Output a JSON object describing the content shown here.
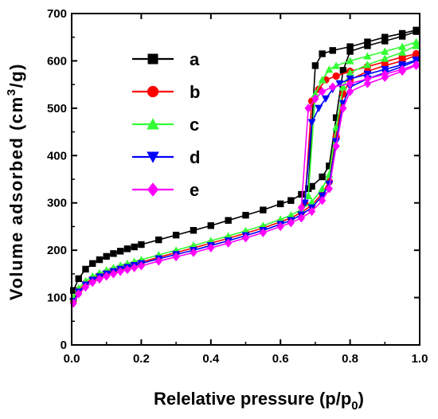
{
  "chart_data": {
    "type": "line",
    "xlabel": "Relelative pressure (p/p",
    "xlabel_sub": "0",
    "xlabel_close": ")",
    "ylabel": "Volume adsorbed (cm",
    "ylabel_sup": "3",
    "ylabel_close": "/g)",
    "xlim": [
      0.0,
      1.0
    ],
    "ylim": [
      0,
      700
    ],
    "xticks": [
      "0.0",
      "0.2",
      "0.4",
      "0.6",
      "0.8",
      "1.0"
    ],
    "yticks": [
      "0",
      "100",
      "200",
      "300",
      "400",
      "500",
      "600",
      "700"
    ],
    "legend_position": "upper-left",
    "series": [
      {
        "name": "a",
        "color": "#000000",
        "marker": "square",
        "adsorption": {
          "x": [
            0.005,
            0.02,
            0.04,
            0.06,
            0.08,
            0.1,
            0.12,
            0.14,
            0.16,
            0.18,
            0.2,
            0.25,
            0.3,
            0.35,
            0.4,
            0.45,
            0.5,
            0.55,
            0.6,
            0.63,
            0.66,
            0.69,
            0.72,
            0.74,
            0.76,
            0.78,
            0.8,
            0.85,
            0.9,
            0.95,
            0.99
          ],
          "y": [
            115,
            140,
            160,
            172,
            180,
            187,
            193,
            198,
            203,
            207,
            212,
            222,
            232,
            242,
            252,
            263,
            274,
            285,
            298,
            305,
            318,
            335,
            355,
            378,
            480,
            580,
            620,
            632,
            642,
            652,
            662
          ]
        },
        "desorption": {
          "x": [
            0.99,
            0.95,
            0.9,
            0.85,
            0.8,
            0.75,
            0.72,
            0.7,
            0.68
          ],
          "y": [
            665,
            658,
            650,
            640,
            630,
            622,
            615,
            590,
            330
          ]
        }
      },
      {
        "name": "b",
        "color": "#ff0000",
        "marker": "circle",
        "adsorption": {
          "x": [
            0.005,
            0.02,
            0.04,
            0.06,
            0.08,
            0.1,
            0.12,
            0.14,
            0.16,
            0.18,
            0.2,
            0.25,
            0.3,
            0.35,
            0.4,
            0.45,
            0.5,
            0.55,
            0.6,
            0.63,
            0.66,
            0.69,
            0.72,
            0.74,
            0.76,
            0.78,
            0.8,
            0.85,
            0.9,
            0.95,
            0.99
          ],
          "y": [
            95,
            115,
            130,
            140,
            147,
            153,
            158,
            163,
            167,
            171,
            175,
            185,
            195,
            205,
            215,
            225,
            236,
            247,
            260,
            268,
            280,
            295,
            320,
            345,
            440,
            530,
            560,
            578,
            590,
            600,
            612
          ]
        },
        "desorption": {
          "x": [
            0.99,
            0.95,
            0.9,
            0.85,
            0.8,
            0.76,
            0.73,
            0.71,
            0.69,
            0.67
          ],
          "y": [
            615,
            608,
            598,
            588,
            578,
            568,
            560,
            540,
            515,
            300
          ]
        }
      },
      {
        "name": "c",
        "color": "#33ff33",
        "marker": "triangle-up",
        "adsorption": {
          "x": [
            0.005,
            0.02,
            0.04,
            0.06,
            0.08,
            0.1,
            0.12,
            0.14,
            0.16,
            0.18,
            0.2,
            0.25,
            0.3,
            0.35,
            0.4,
            0.45,
            0.5,
            0.55,
            0.6,
            0.63,
            0.66,
            0.69,
            0.72,
            0.74,
            0.76,
            0.78,
            0.8,
            0.85,
            0.9,
            0.95,
            0.99
          ],
          "y": [
            100,
            120,
            135,
            145,
            152,
            158,
            163,
            168,
            172,
            176,
            180,
            190,
            200,
            210,
            220,
            230,
            241,
            252,
            265,
            274,
            286,
            302,
            330,
            360,
            460,
            545,
            575,
            592,
            605,
            618,
            632
          ]
        },
        "desorption": {
          "x": [
            0.99,
            0.95,
            0.9,
            0.85,
            0.8,
            0.76,
            0.74,
            0.72,
            0.7,
            0.68
          ],
          "y": [
            640,
            630,
            620,
            610,
            600,
            590,
            582,
            560,
            530,
            315
          ]
        }
      },
      {
        "name": "d",
        "color": "#0000ff",
        "marker": "triangle-down",
        "adsorption": {
          "x": [
            0.005,
            0.02,
            0.04,
            0.06,
            0.08,
            0.1,
            0.12,
            0.14,
            0.16,
            0.18,
            0.2,
            0.25,
            0.3,
            0.35,
            0.4,
            0.45,
            0.5,
            0.55,
            0.6,
            0.63,
            0.66,
            0.69,
            0.72,
            0.74,
            0.76,
            0.78,
            0.8,
            0.85,
            0.9,
            0.95,
            0.99
          ],
          "y": [
            92,
            112,
            127,
            137,
            144,
            150,
            155,
            160,
            164,
            168,
            172,
            182,
            191,
            200,
            210,
            220,
            231,
            242,
            255,
            263,
            275,
            290,
            315,
            340,
            430,
            510,
            545,
            562,
            575,
            588,
            600
          ]
        },
        "desorption": {
          "x": [
            0.99,
            0.95,
            0.9,
            0.85,
            0.8,
            0.77,
            0.75,
            0.73,
            0.71,
            0.69,
            0.67
          ],
          "y": [
            602,
            592,
            582,
            572,
            562,
            552,
            540,
            520,
            500,
            470,
            300
          ]
        }
      },
      {
        "name": "e",
        "color": "#ff00ff",
        "marker": "diamond",
        "adsorption": {
          "x": [
            0.005,
            0.02,
            0.04,
            0.06,
            0.08,
            0.1,
            0.12,
            0.14,
            0.16,
            0.18,
            0.2,
            0.25,
            0.3,
            0.35,
            0.4,
            0.45,
            0.5,
            0.55,
            0.6,
            0.63,
            0.66,
            0.69,
            0.72,
            0.74,
            0.76,
            0.78,
            0.8,
            0.85,
            0.9,
            0.95,
            0.99
          ],
          "y": [
            88,
            108,
            122,
            132,
            139,
            145,
            150,
            155,
            159,
            163,
            167,
            177,
            186,
            195,
            205,
            215,
            226,
            237,
            250,
            258,
            268,
            282,
            305,
            330,
            420,
            500,
            535,
            552,
            565,
            578,
            590
          ]
        },
        "desorption": {
          "x": [
            0.99,
            0.95,
            0.9,
            0.85,
            0.8,
            0.75,
            0.72,
            0.7,
            0.68,
            0.66
          ],
          "y": [
            592,
            582,
            572,
            562,
            552,
            545,
            535,
            520,
            500,
            290
          ]
        }
      }
    ]
  }
}
